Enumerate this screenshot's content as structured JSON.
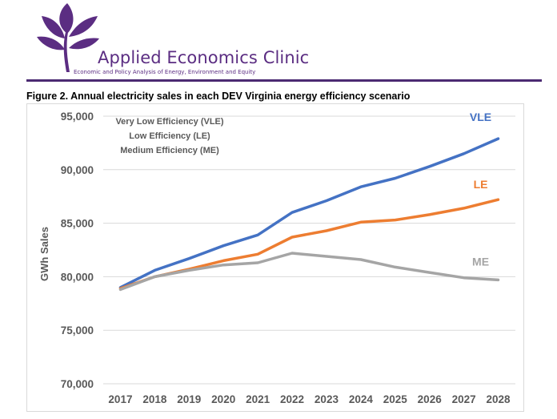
{
  "header": {
    "org_name": "Applied Economics Clinic",
    "tagline": "Economic and Policy Analysis of Energy, Environment and Equity"
  },
  "figure": {
    "caption": "Figure 2. Annual electricity sales in each DEV Virginia energy efficiency scenario"
  },
  "legend_text": [
    "Very Low Efficiency (VLE)",
    "Low Efficiency (LE)",
    "Medium Efficiency (ME)"
  ],
  "colors": {
    "brand_purple": "#5b2d82",
    "vle": "#4472c4",
    "le": "#ed7d31",
    "me": "#a5a5a5",
    "gridline": "#d9d9d9",
    "axis_text": "#595959"
  },
  "chart_data": {
    "type": "line",
    "title": "",
    "xlabel": "",
    "ylabel": "GWh Sales",
    "ylim": [
      70000,
      95000
    ],
    "yticks": [
      "70,000",
      "75,000",
      "80,000",
      "85,000",
      "90,000",
      "95,000"
    ],
    "ytick_values": [
      70000,
      75000,
      80000,
      85000,
      90000,
      95000
    ],
    "categories": [
      "2017",
      "2018",
      "2019",
      "2020",
      "2021",
      "2022",
      "2023",
      "2024",
      "2025",
      "2026",
      "2027",
      "2028"
    ],
    "grid": true,
    "series": [
      {
        "name": "VLE",
        "color": "#4472c4",
        "values": [
          79000,
          80600,
          81700,
          82900,
          83900,
          86000,
          87100,
          88400,
          89200,
          90300,
          91500,
          92900
        ]
      },
      {
        "name": "LE",
        "color": "#ed7d31",
        "values": [
          78900,
          80000,
          80700,
          81500,
          82100,
          83700,
          84300,
          85100,
          85300,
          85800,
          86400,
          87200
        ]
      },
      {
        "name": "ME",
        "color": "#a5a5a5",
        "values": [
          78800,
          80000,
          80600,
          81100,
          81300,
          82200,
          81900,
          81600,
          80900,
          80400,
          79900,
          79700
        ]
      }
    ]
  }
}
